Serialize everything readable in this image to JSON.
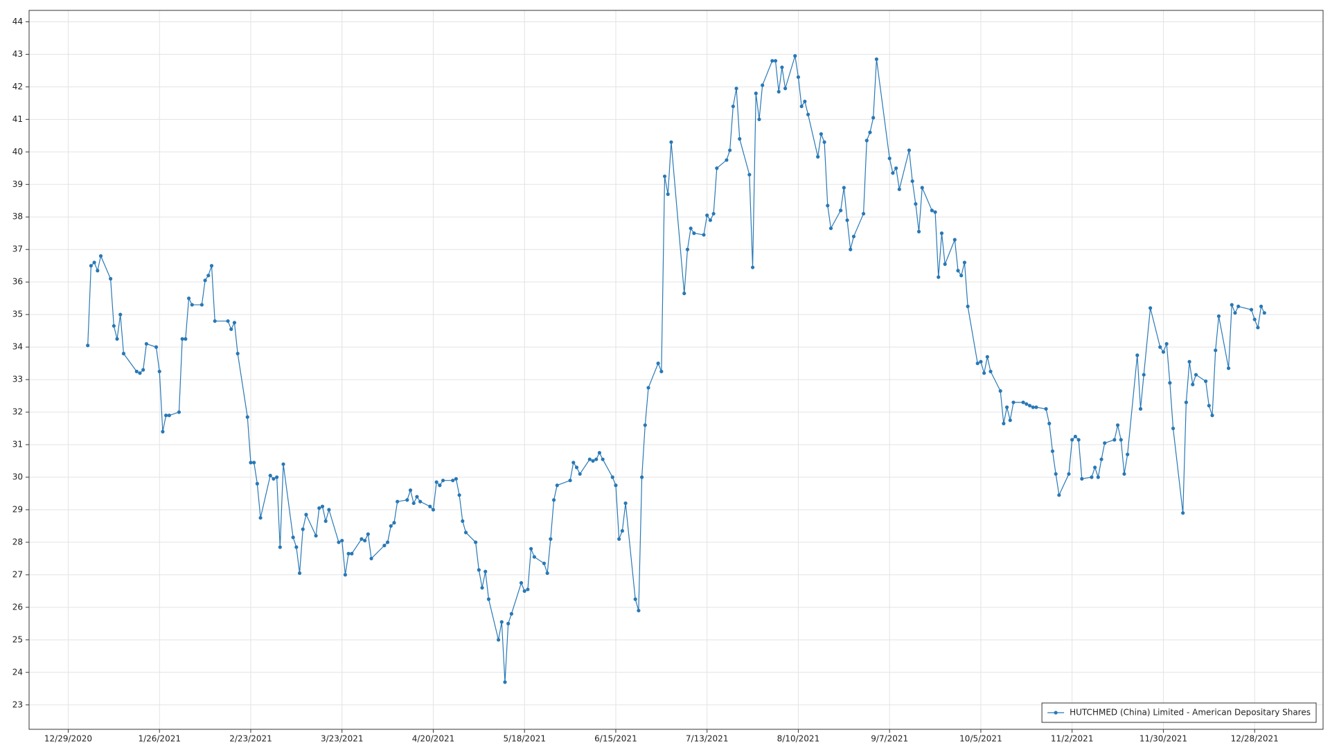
{
  "chart_data": {
    "type": "line",
    "x": [
      "1/4/2021",
      "1/5/2021",
      "1/6/2021",
      "1/7/2021",
      "1/8/2021",
      "1/11/2021",
      "1/12/2021",
      "1/13/2021",
      "1/14/2021",
      "1/15/2021",
      "1/19/2021",
      "1/20/2021",
      "1/21/2021",
      "1/22/2021",
      "1/25/2021",
      "1/26/2021",
      "1/27/2021",
      "1/28/2021",
      "1/29/2021",
      "2/1/2021",
      "2/2/2021",
      "2/3/2021",
      "2/4/2021",
      "2/5/2021",
      "2/8/2021",
      "2/9/2021",
      "2/10/2021",
      "2/11/2021",
      "2/12/2021",
      "2/16/2021",
      "2/17/2021",
      "2/18/2021",
      "2/19/2021",
      "2/22/2021",
      "2/23/2021",
      "2/24/2021",
      "2/25/2021",
      "2/26/2021",
      "3/1/2021",
      "3/2/2021",
      "3/3/2021",
      "3/4/2021",
      "3/5/2021",
      "3/8/2021",
      "3/9/2021",
      "3/10/2021",
      "3/11/2021",
      "3/12/2021",
      "3/15/2021",
      "3/16/2021",
      "3/17/2021",
      "3/18/2021",
      "3/19/2021",
      "3/22/2021",
      "3/23/2021",
      "3/24/2021",
      "3/25/2021",
      "3/26/2021",
      "3/29/2021",
      "3/30/2021",
      "3/31/2021",
      "4/1/2021",
      "4/5/2021",
      "4/6/2021",
      "4/7/2021",
      "4/8/2021",
      "4/9/2021",
      "4/12/2021",
      "4/13/2021",
      "4/14/2021",
      "4/15/2021",
      "4/16/2021",
      "4/19/2021",
      "4/20/2021",
      "4/21/2021",
      "4/22/2021",
      "4/23/2021",
      "4/26/2021",
      "4/27/2021",
      "4/28/2021",
      "4/29/2021",
      "4/30/2021",
      "5/3/2021",
      "5/4/2021",
      "5/5/2021",
      "5/6/2021",
      "5/7/2021",
      "5/10/2021",
      "5/11/2021",
      "5/12/2021",
      "5/13/2021",
      "5/14/2021",
      "5/17/2021",
      "5/18/2021",
      "5/19/2021",
      "5/20/2021",
      "5/21/2021",
      "5/24/2021",
      "5/25/2021",
      "5/26/2021",
      "5/27/2021",
      "5/28/2021",
      "6/1/2021",
      "6/2/2021",
      "6/3/2021",
      "6/4/2021",
      "6/7/2021",
      "6/8/2021",
      "6/9/2021",
      "6/10/2021",
      "6/11/2021",
      "6/14/2021",
      "6/15/2021",
      "6/16/2021",
      "6/17/2021",
      "6/18/2021",
      "6/21/2021",
      "6/22/2021",
      "6/23/2021",
      "6/24/2021",
      "6/25/2021",
      "6/28/2021",
      "6/29/2021",
      "6/30/2021",
      "7/1/2021",
      "7/2/2021",
      "7/6/2021",
      "7/7/2021",
      "7/8/2021",
      "7/9/2021",
      "7/12/2021",
      "7/13/2021",
      "7/14/2021",
      "7/15/2021",
      "7/16/2021",
      "7/19/2021",
      "7/20/2021",
      "7/21/2021",
      "7/22/2021",
      "7/23/2021",
      "7/26/2021",
      "7/27/2021",
      "7/28/2021",
      "7/29/2021",
      "7/30/2021",
      "8/2/2021",
      "8/3/2021",
      "8/4/2021",
      "8/5/2021",
      "8/6/2021",
      "8/9/2021",
      "8/10/2021",
      "8/11/2021",
      "8/12/2021",
      "8/13/2021",
      "8/16/2021",
      "8/17/2021",
      "8/18/2021",
      "8/19/2021",
      "8/20/2021",
      "8/23/2021",
      "8/24/2021",
      "8/25/2021",
      "8/26/2021",
      "8/27/2021",
      "8/30/2021",
      "8/31/2021",
      "9/1/2021",
      "9/2/2021",
      "9/3/2021",
      "9/7/2021",
      "9/8/2021",
      "9/9/2021",
      "9/10/2021",
      "9/13/2021",
      "9/14/2021",
      "9/15/2021",
      "9/16/2021",
      "9/17/2021",
      "9/20/2021",
      "9/21/2021",
      "9/22/2021",
      "9/23/2021",
      "9/24/2021",
      "9/27/2021",
      "9/28/2021",
      "9/29/2021",
      "9/30/2021",
      "10/1/2021",
      "10/4/2021",
      "10/5/2021",
      "10/6/2021",
      "10/7/2021",
      "10/8/2021",
      "10/11/2021",
      "10/12/2021",
      "10/13/2021",
      "10/14/2021",
      "10/15/2021",
      "10/18/2021",
      "10/19/2021",
      "10/20/2021",
      "10/21/2021",
      "10/22/2021",
      "10/25/2021",
      "10/26/2021",
      "10/27/2021",
      "10/28/2021",
      "10/29/2021",
      "11/1/2021",
      "11/2/2021",
      "11/3/2021",
      "11/4/2021",
      "11/5/2021",
      "11/8/2021",
      "11/9/2021",
      "11/10/2021",
      "11/11/2021",
      "11/12/2021",
      "11/15/2021",
      "11/16/2021",
      "11/17/2021",
      "11/18/2021",
      "11/19/2021",
      "11/22/2021",
      "11/23/2021",
      "11/24/2021",
      "11/26/2021",
      "11/29/2021",
      "11/30/2021",
      "12/1/2021",
      "12/2/2021",
      "12/3/2021",
      "12/6/2021",
      "12/7/2021",
      "12/8/2021",
      "12/9/2021",
      "12/10/2021",
      "12/13/2021",
      "12/14/2021",
      "12/15/2021",
      "12/16/2021",
      "12/17/2021",
      "12/20/2021",
      "12/21/2021",
      "12/22/2021",
      "12/23/2021",
      "12/27/2021",
      "12/28/2021",
      "12/29/2021",
      "12/30/2021",
      "12/31/2021"
    ],
    "series": [
      {
        "name": "HUTCHMED (China) Limited - American Depositary Shares",
        "color": "#2878b5",
        "values": [
          34.05,
          36.5,
          36.6,
          36.35,
          36.8,
          36.1,
          34.65,
          34.25,
          35.0,
          33.8,
          33.25,
          33.2,
          33.3,
          34.1,
          34.0,
          33.25,
          31.4,
          31.9,
          31.9,
          32.0,
          34.25,
          34.25,
          35.5,
          35.3,
          35.3,
          36.05,
          36.2,
          36.5,
          34.8,
          34.8,
          34.55,
          34.75,
          33.8,
          31.85,
          30.45,
          30.45,
          29.8,
          28.75,
          30.05,
          29.95,
          30.0,
          27.85,
          30.4,
          28.15,
          27.85,
          27.05,
          28.4,
          28.85,
          28.2,
          29.05,
          29.1,
          28.65,
          29.0,
          28.0,
          28.05,
          27.0,
          27.65,
          27.65,
          28.1,
          28.05,
          28.25,
          27.5,
          27.9,
          28.0,
          28.5,
          28.6,
          29.25,
          29.3,
          29.6,
          29.2,
          29.4,
          29.25,
          29.1,
          29.0,
          29.85,
          29.75,
          29.9,
          29.9,
          29.95,
          29.45,
          28.65,
          28.3,
          28.0,
          27.15,
          26.6,
          27.1,
          26.25,
          25.0,
          25.55,
          23.7,
          25.5,
          25.8,
          26.75,
          26.5,
          26.55,
          27.8,
          27.55,
          27.35,
          27.05,
          28.1,
          29.3,
          29.75,
          29.9,
          30.45,
          30.3,
          30.1,
          30.55,
          30.5,
          30.55,
          30.75,
          30.55,
          30.0,
          29.75,
          28.1,
          28.35,
          29.2,
          26.25,
          25.9,
          30.0,
          31.6,
          32.75,
          33.5,
          33.25,
          39.25,
          38.7,
          40.3,
          35.65,
          37.0,
          37.65,
          37.5,
          37.45,
          38.05,
          37.9,
          38.1,
          39.5,
          39.75,
          40.05,
          41.4,
          41.95,
          40.4,
          39.3,
          36.45,
          41.8,
          41.0,
          42.05,
          42.8,
          42.8,
          41.85,
          42.6,
          41.95,
          42.95,
          42.3,
          41.4,
          41.55,
          41.15,
          39.85,
          40.55,
          40.3,
          38.35,
          37.65,
          38.2,
          38.9,
          37.9,
          37.0,
          37.4,
          38.1,
          40.35,
          40.6,
          41.05,
          42.85,
          39.8,
          39.35,
          39.5,
          38.85,
          40.05,
          39.1,
          38.4,
          37.55,
          38.9,
          38.2,
          38.15,
          36.15,
          37.5,
          36.55,
          37.3,
          36.35,
          36.2,
          36.6,
          35.25,
          33.5,
          33.55,
          33.2,
          33.7,
          33.25,
          32.65,
          31.65,
          32.15,
          31.75,
          32.3,
          32.3,
          32.25,
          32.2,
          32.15,
          32.15,
          32.1,
          31.65,
          30.8,
          30.1,
          29.45,
          30.1,
          31.15,
          31.25,
          31.15,
          29.95,
          30.0,
          30.3,
          30.0,
          30.55,
          31.05,
          31.15,
          31.6,
          31.15,
          30.1,
          30.7,
          33.75,
          32.1,
          33.15,
          35.2,
          34.0,
          33.85,
          34.1,
          32.9,
          31.5,
          28.9,
          32.3,
          33.55,
          32.85,
          33.15,
          32.95,
          32.2,
          31.9,
          33.9,
          34.95,
          33.35,
          35.3,
          35.05,
          35.25,
          35.15,
          34.85,
          34.6,
          35.25,
          35.05
        ]
      }
    ],
    "xlim": [
      "12/17/2020",
      "1/18/2022"
    ],
    "xticks": [
      "12/29/2020",
      "1/26/2021",
      "2/23/2021",
      "3/23/2021",
      "4/20/2021",
      "5/18/2021",
      "6/15/2021",
      "7/13/2021",
      "8/10/2021",
      "9/7/2021",
      "10/5/2021",
      "11/2/2021",
      "11/30/2021",
      "12/28/2021"
    ],
    "ylim": [
      22.25,
      44.35
    ],
    "yticks": [
      23,
      24,
      25,
      26,
      27,
      28,
      29,
      30,
      31,
      32,
      33,
      34,
      35,
      36,
      37,
      38,
      39,
      40,
      41,
      42,
      43,
      44
    ],
    "grid": true,
    "legend": "lower right"
  }
}
